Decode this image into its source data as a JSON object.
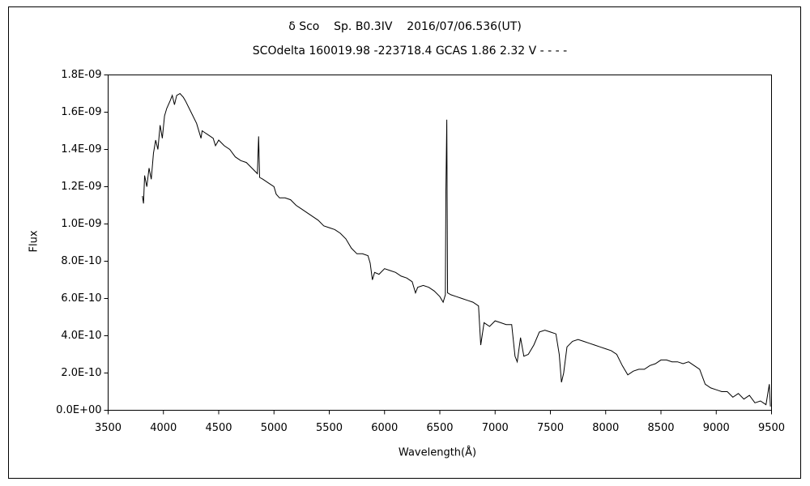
{
  "chart_data": {
    "type": "line",
    "title": "δ Sco    Sp. B0.3IV    2016/07/06.536(UT)",
    "subtitle": "SCOdelta 160019.98 -223718.4 GCAS 1.86 2.32 V - - - -",
    "x_label": "Wavelength(Å)",
    "y_label": "Flux",
    "color": "#000000",
    "xlim": [
      3500,
      9500
    ],
    "xticks": [
      3500,
      4000,
      4500,
      5000,
      5500,
      6000,
      6500,
      7000,
      7500,
      8000,
      8500,
      9000,
      9500
    ],
    "ylim": [
      0,
      1.8e-09
    ],
    "yticks": [
      {
        "value": 0,
        "label": "0.0E+00"
      },
      {
        "value": 2e-10,
        "label": "2.0E-10"
      },
      {
        "value": 4e-10,
        "label": "4.0E-10"
      },
      {
        "value": 6e-10,
        "label": "6.0E-10"
      },
      {
        "value": 8e-10,
        "label": "8.0E-10"
      },
      {
        "value": 1e-09,
        "label": "1.0E-09"
      },
      {
        "value": 1.2e-09,
        "label": "1.2E-09"
      },
      {
        "value": 1.4e-09,
        "label": "1.4E-09"
      },
      {
        "value": 1.6e-09,
        "label": "1.6E-09"
      },
      {
        "value": 1.8e-09,
        "label": "1.8E-09"
      }
    ],
    "grid": false,
    "x": [
      3810,
      3820,
      3830,
      3850,
      3870,
      3890,
      3910,
      3930,
      3950,
      3970,
      3990,
      4010,
      4030,
      4060,
      4080,
      4100,
      4120,
      4150,
      4180,
      4200,
      4250,
      4300,
      4340,
      4350,
      4400,
      4450,
      4471,
      4500,
      4550,
      4600,
      4650,
      4700,
      4750,
      4800,
      4850,
      4861,
      4870,
      4900,
      4950,
      5000,
      5020,
      5050,
      5100,
      5150,
      5200,
      5250,
      5300,
      5350,
      5400,
      5450,
      5500,
      5550,
      5600,
      5650,
      5700,
      5750,
      5800,
      5850,
      5870,
      5890,
      5910,
      5950,
      6000,
      6050,
      6100,
      6150,
      6200,
      6250,
      6280,
      6300,
      6350,
      6400,
      6450,
      6500,
      6530,
      6550,
      6555,
      6563,
      6570,
      6600,
      6650,
      6700,
      6750,
      6800,
      6850,
      6870,
      6900,
      6950,
      7000,
      7050,
      7100,
      7150,
      7180,
      7200,
      7230,
      7260,
      7300,
      7350,
      7400,
      7450,
      7500,
      7550,
      7580,
      7600,
      7620,
      7650,
      7700,
      7750,
      7800,
      7850,
      7900,
      7950,
      8000,
      8050,
      8100,
      8150,
      8200,
      8250,
      8300,
      8350,
      8400,
      8450,
      8500,
      8550,
      8600,
      8650,
      8700,
      8750,
      8800,
      8850,
      8900,
      8950,
      9000,
      9050,
      9100,
      9150,
      9200,
      9250,
      9300,
      9350,
      9400,
      9450,
      9480,
      9490
    ],
    "values": [
      1.15e-09,
      1.11e-09,
      1.26e-09,
      1.2e-09,
      1.3e-09,
      1.24e-09,
      1.38e-09,
      1.45e-09,
      1.4e-09,
      1.53e-09,
      1.46e-09,
      1.58e-09,
      1.62e-09,
      1.66e-09,
      1.69e-09,
      1.64e-09,
      1.69e-09,
      1.7e-09,
      1.68e-09,
      1.66e-09,
      1.6e-09,
      1.54e-09,
      1.46e-09,
      1.5e-09,
      1.48e-09,
      1.46e-09,
      1.42e-09,
      1.45e-09,
      1.42e-09,
      1.4e-09,
      1.36e-09,
      1.34e-09,
      1.33e-09,
      1.3e-09,
      1.27e-09,
      1.47e-09,
      1.25e-09,
      1.24e-09,
      1.22e-09,
      1.2e-09,
      1.16e-09,
      1.14e-09,
      1.14e-09,
      1.13e-09,
      1.1e-09,
      1.08e-09,
      1.06e-09,
      1.04e-09,
      1.02e-09,
      9.9e-10,
      9.8e-10,
      9.7e-10,
      9.5e-10,
      9.2e-10,
      8.7e-10,
      8.4e-10,
      8.4e-10,
      8.3e-10,
      7.9e-10,
      7e-10,
      7.4e-10,
      7.3e-10,
      7.6e-10,
      7.5e-10,
      7.4e-10,
      7.2e-10,
      7.1e-10,
      6.9e-10,
      6.3e-10,
      6.6e-10,
      6.7e-10,
      6.6e-10,
      6.4e-10,
      6.1e-10,
      5.8e-10,
      6.2e-10,
      1.18e-09,
      1.56e-09,
      6.3e-10,
      6.2e-10,
      6.1e-10,
      6e-10,
      5.9e-10,
      5.8e-10,
      5.6e-10,
      3.5e-10,
      4.7e-10,
      4.5e-10,
      4.8e-10,
      4.7e-10,
      4.6e-10,
      4.6e-10,
      2.9e-10,
      2.6e-10,
      3.9e-10,
      2.9e-10,
      3e-10,
      3.5e-10,
      4.2e-10,
      4.3e-10,
      4.2e-10,
      4.1e-10,
      3e-10,
      1.5e-10,
      2e-10,
      3.4e-10,
      3.7e-10,
      3.8e-10,
      3.7e-10,
      3.6e-10,
      3.5e-10,
      3.4e-10,
      3.3e-10,
      3.2e-10,
      3e-10,
      2.4e-10,
      1.9e-10,
      2.1e-10,
      2.2e-10,
      2.2e-10,
      2.4e-10,
      2.5e-10,
      2.7e-10,
      2.7e-10,
      2.6e-10,
      2.6e-10,
      2.5e-10,
      2.6e-10,
      2.4e-10,
      2.2e-10,
      1.4e-10,
      1.2e-10,
      1.1e-10,
      1e-10,
      1e-10,
      7e-11,
      9e-11,
      6e-11,
      8e-11,
      4e-11,
      5e-11,
      3e-11,
      1.4e-10,
      2e-11
    ]
  }
}
